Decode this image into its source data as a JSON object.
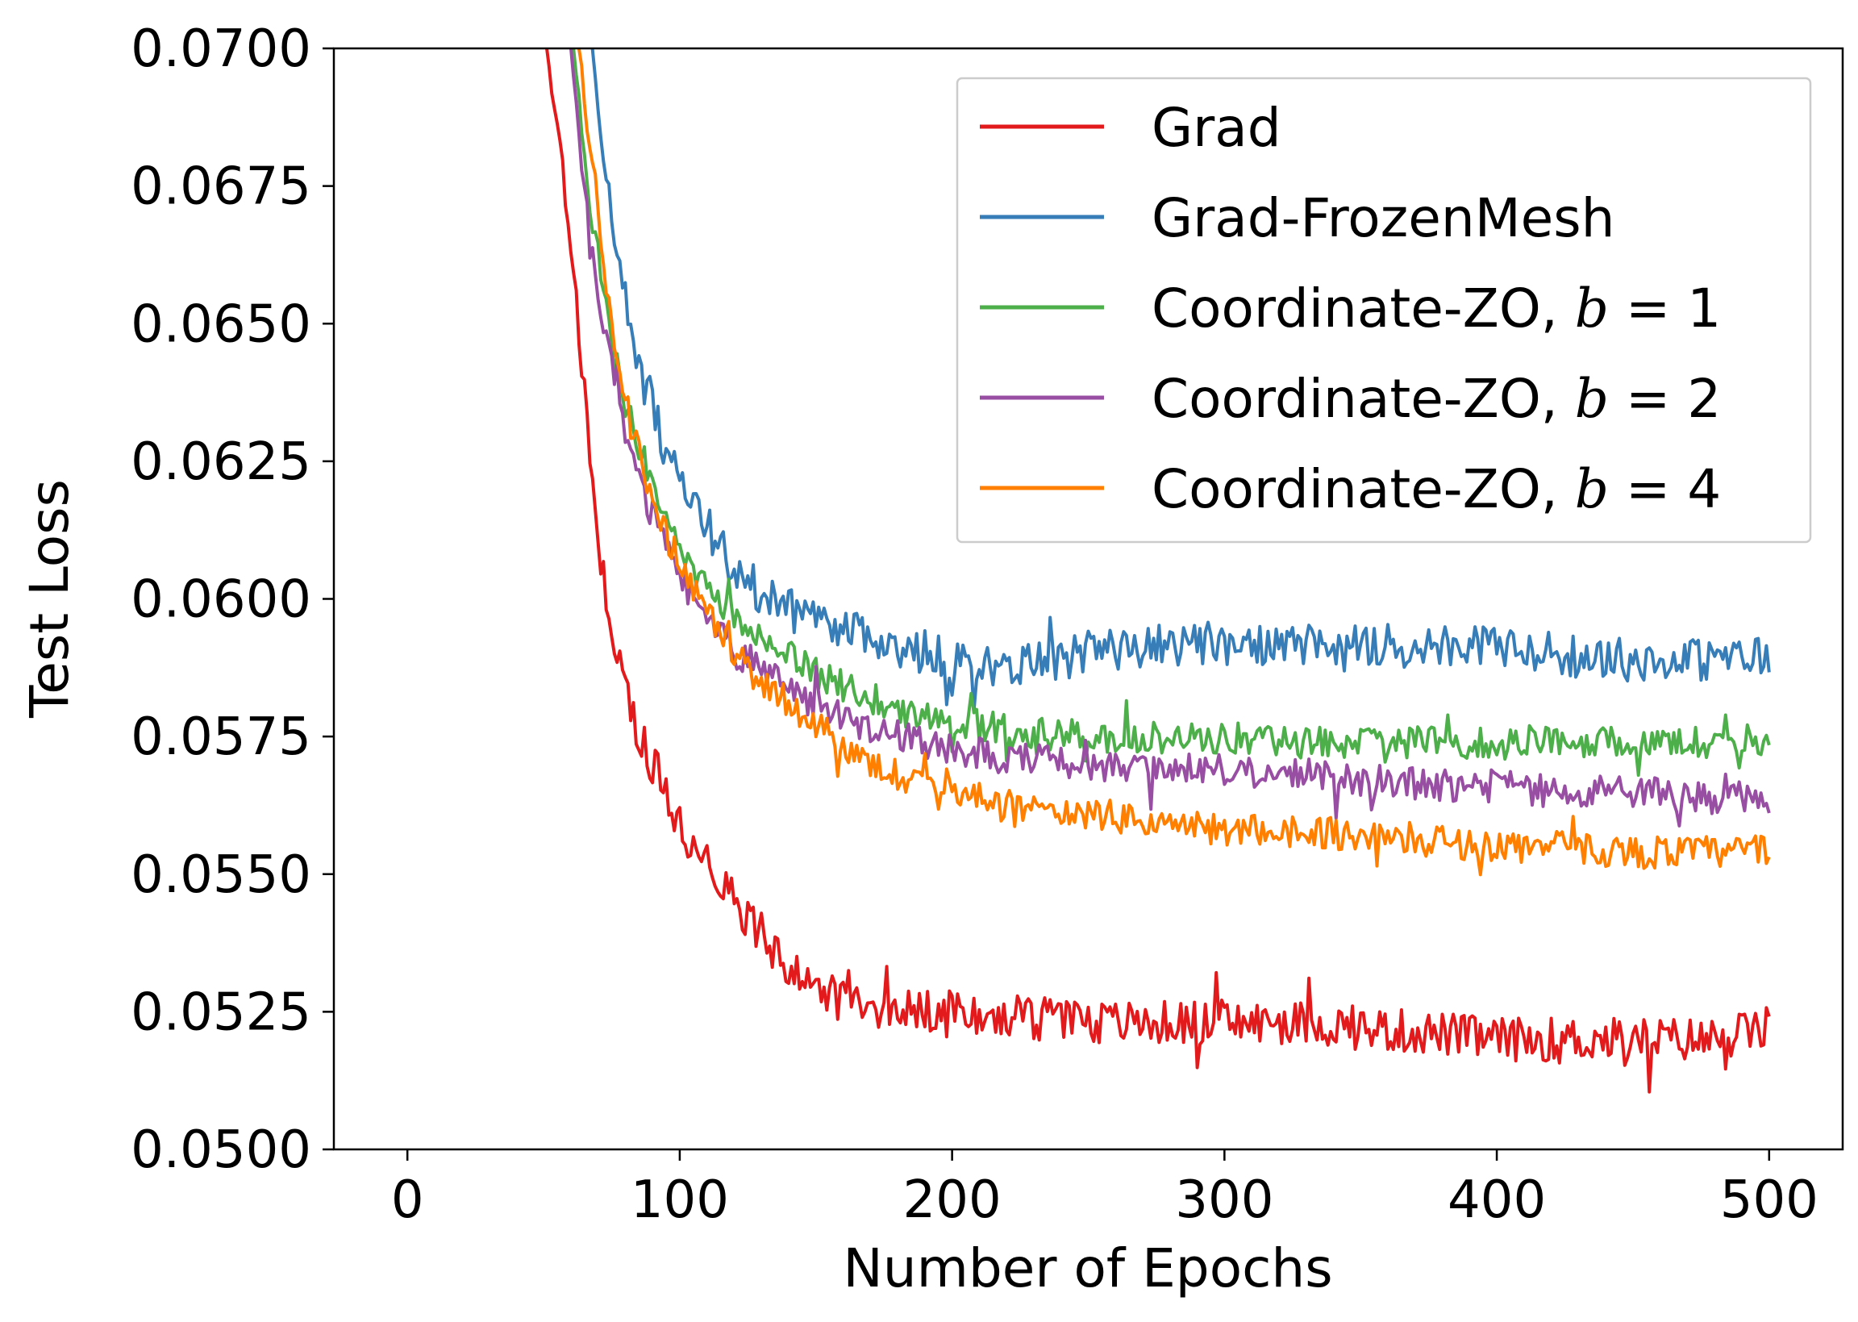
{
  "chart_data": {
    "type": "line",
    "title": "",
    "xlabel": "Number of Epochs",
    "ylabel": "Test Loss",
    "xlim": [
      -27,
      527
    ],
    "ylim": [
      0.05,
      0.07
    ],
    "xticks": [
      0,
      100,
      200,
      300,
      400,
      500
    ],
    "xtick_labels": [
      "0",
      "100",
      "200",
      "300",
      "400",
      "500"
    ],
    "yticks": [
      0.05,
      0.0525,
      0.055,
      0.0575,
      0.06,
      0.0625,
      0.065,
      0.0675,
      0.07
    ],
    "ytick_labels": [
      "0.0500",
      "0.0525",
      "0.0550",
      "0.0575",
      "0.0600",
      "0.0625",
      "0.0650",
      "0.0675",
      "0.0700"
    ],
    "grid": false,
    "legend_position": "top-right",
    "series": [
      {
        "name": "Grad",
        "color": "#e31a1c",
        "x": [
          50,
          55,
          60,
          65,
          70,
          75,
          80,
          85,
          90,
          95,
          100,
          110,
          120,
          130,
          140,
          150,
          160,
          170,
          180,
          200,
          220,
          250,
          280,
          300,
          330,
          350,
          380,
          400,
          420,
          450,
          470,
          480,
          490,
          500
        ],
        "y": [
          0.0705,
          0.0685,
          0.0665,
          0.0637,
          0.061,
          0.0595,
          0.0585,
          0.0575,
          0.057,
          0.0565,
          0.0559,
          0.0552,
          0.0545,
          0.0539,
          0.0533,
          0.053,
          0.0527,
          0.0526,
          0.0526,
          0.0525,
          0.0524,
          0.0523,
          0.0523,
          0.0523,
          0.0523,
          0.0522,
          0.0521,
          0.052,
          0.052,
          0.052,
          0.052,
          0.052,
          0.0521,
          0.0522
        ],
        "noise": [
          0,
          0.0003,
          0.0003,
          0.0003,
          0.0003,
          0.0003,
          0.0003,
          0.0004,
          0.0004,
          0.0004,
          0.0004,
          0.0004,
          0.0004,
          0.0004,
          0.0004,
          0.0004,
          0.0004,
          0.0004,
          0.0004,
          0.0004,
          0.0004,
          0.0004,
          0.0004,
          0.0004,
          0.0004,
          0.0004,
          0.0004,
          0.0004,
          0.0004,
          0.0004,
          0.0004,
          0.0004,
          0.0004,
          0.0004
        ]
      },
      {
        "name": "Grad-FrozenMesh",
        "color": "#377eb8",
        "x": [
          67,
          70,
          75,
          80,
          85,
          90,
          95,
          100,
          110,
          120,
          130,
          140,
          150,
          160,
          170,
          180,
          200,
          220,
          250,
          280,
          300,
          330,
          350,
          380,
          400,
          420,
          450,
          470,
          490,
          500
        ],
        "y": [
          0.0705,
          0.069,
          0.067,
          0.0655,
          0.0643,
          0.0635,
          0.0627,
          0.0622,
          0.0613,
          0.0606,
          0.0601,
          0.0598,
          0.0596,
          0.0594,
          0.0593,
          0.0591,
          0.0589,
          0.0588,
          0.059,
          0.0592,
          0.0592,
          0.0592,
          0.0592,
          0.0591,
          0.0591,
          0.059,
          0.0589,
          0.0589,
          0.0589,
          0.059
        ],
        "noise": [
          0,
          0.0003,
          0.0003,
          0.0003,
          0.0004,
          0.0004,
          0.0004,
          0.0004,
          0.0004,
          0.0004,
          0.0004,
          0.0004,
          0.0004,
          0.0004,
          0.0004,
          0.0004,
          0.0004,
          0.0004,
          0.0004,
          0.0004,
          0.0004,
          0.0004,
          0.0004,
          0.0004,
          0.0004,
          0.0004,
          0.0004,
          0.0004,
          0.0004,
          0.0004
        ]
      },
      {
        "name": "Coordinate-ZO, b = 1",
        "color": "#4daf4a",
        "x": [
          60,
          65,
          70,
          75,
          80,
          85,
          90,
          95,
          100,
          110,
          120,
          130,
          140,
          150,
          160,
          170,
          180,
          200,
          220,
          250,
          280,
          300,
          330,
          350,
          380,
          400,
          420,
          450,
          470,
          490,
          500
        ],
        "y": [
          0.0705,
          0.068,
          0.0662,
          0.0648,
          0.0636,
          0.0628,
          0.0621,
          0.0615,
          0.061,
          0.0602,
          0.0597,
          0.0593,
          0.059,
          0.0587,
          0.0584,
          0.0582,
          0.058,
          0.0578,
          0.0576,
          0.0575,
          0.0575,
          0.0575,
          0.0574,
          0.0574,
          0.0574,
          0.0574,
          0.0574,
          0.0574,
          0.0574,
          0.0574,
          0.0575
        ],
        "noise": [
          0,
          0.0003,
          0.0003,
          0.0003,
          0.0003,
          0.0003,
          0.0003,
          0.0003,
          0.0003,
          0.0003,
          0.0003,
          0.0003,
          0.0003,
          0.0003,
          0.0003,
          0.0003,
          0.0003,
          0.0003,
          0.0003,
          0.0003,
          0.0003,
          0.0003,
          0.0003,
          0.0003,
          0.0003,
          0.0003,
          0.0003,
          0.0003,
          0.0003,
          0.0003,
          0.0003
        ]
      },
      {
        "name": "Coordinate-ZO, b = 2",
        "color": "#984ea3",
        "x": [
          59,
          65,
          70,
          75,
          80,
          85,
          90,
          95,
          100,
          110,
          120,
          130,
          140,
          150,
          160,
          170,
          180,
          200,
          220,
          250,
          280,
          300,
          330,
          350,
          380,
          400,
          420,
          450,
          470,
          490,
          500
        ],
        "y": [
          0.0705,
          0.0675,
          0.0655,
          0.0643,
          0.0631,
          0.0622,
          0.0615,
          0.0609,
          0.0604,
          0.0596,
          0.0591,
          0.0587,
          0.0584,
          0.0581,
          0.0578,
          0.0576,
          0.0575,
          0.0573,
          0.0571,
          0.057,
          0.0569,
          0.0569,
          0.0568,
          0.0567,
          0.0566,
          0.0566,
          0.0565,
          0.0565,
          0.0564,
          0.0564,
          0.0564
        ],
        "noise": [
          0,
          0.0003,
          0.0003,
          0.0003,
          0.0003,
          0.0003,
          0.0003,
          0.0003,
          0.0003,
          0.0003,
          0.0003,
          0.0003,
          0.0003,
          0.0003,
          0.0003,
          0.0003,
          0.0003,
          0.0003,
          0.0003,
          0.0003,
          0.0003,
          0.0003,
          0.0003,
          0.0003,
          0.0003,
          0.0003,
          0.0003,
          0.0003,
          0.0003,
          0.0003,
          0.0003
        ]
      },
      {
        "name": "Coordinate-ZO, b = 4",
        "color": "#ff7f00",
        "x": [
          62,
          65,
          70,
          75,
          80,
          85,
          90,
          95,
          100,
          110,
          120,
          130,
          140,
          150,
          160,
          170,
          180,
          200,
          220,
          250,
          280,
          300,
          330,
          350,
          380,
          400,
          420,
          450,
          470,
          490,
          500
        ],
        "y": [
          0.0705,
          0.0692,
          0.067,
          0.065,
          0.0636,
          0.0626,
          0.0618,
          0.0612,
          0.0606,
          0.0597,
          0.059,
          0.0585,
          0.0581,
          0.0577,
          0.0573,
          0.057,
          0.0568,
          0.0566,
          0.0563,
          0.0561,
          0.0559,
          0.0558,
          0.0558,
          0.0557,
          0.0556,
          0.0555,
          0.0555,
          0.0554,
          0.0554,
          0.0554,
          0.0555
        ],
        "noise": [
          0,
          0.0003,
          0.0003,
          0.0003,
          0.0003,
          0.0003,
          0.0003,
          0.0003,
          0.0003,
          0.0003,
          0.0003,
          0.0003,
          0.0003,
          0.0003,
          0.0003,
          0.0003,
          0.0003,
          0.0003,
          0.0003,
          0.0003,
          0.0003,
          0.0003,
          0.0003,
          0.0003,
          0.0003,
          0.0003,
          0.0003,
          0.0003,
          0.0003,
          0.0003,
          0.0003
        ]
      }
    ],
    "legend": [
      {
        "prefix": "Grad",
        "var": "",
        "eq": ""
      },
      {
        "prefix": "Grad-FrozenMesh",
        "var": "",
        "eq": ""
      },
      {
        "prefix": "Coordinate-ZO, ",
        "var": "b",
        "eq": " = 1"
      },
      {
        "prefix": "Coordinate-ZO, ",
        "var": "b",
        "eq": " = 2"
      },
      {
        "prefix": "Coordinate-ZO, ",
        "var": "b",
        "eq": " = 4"
      }
    ]
  }
}
